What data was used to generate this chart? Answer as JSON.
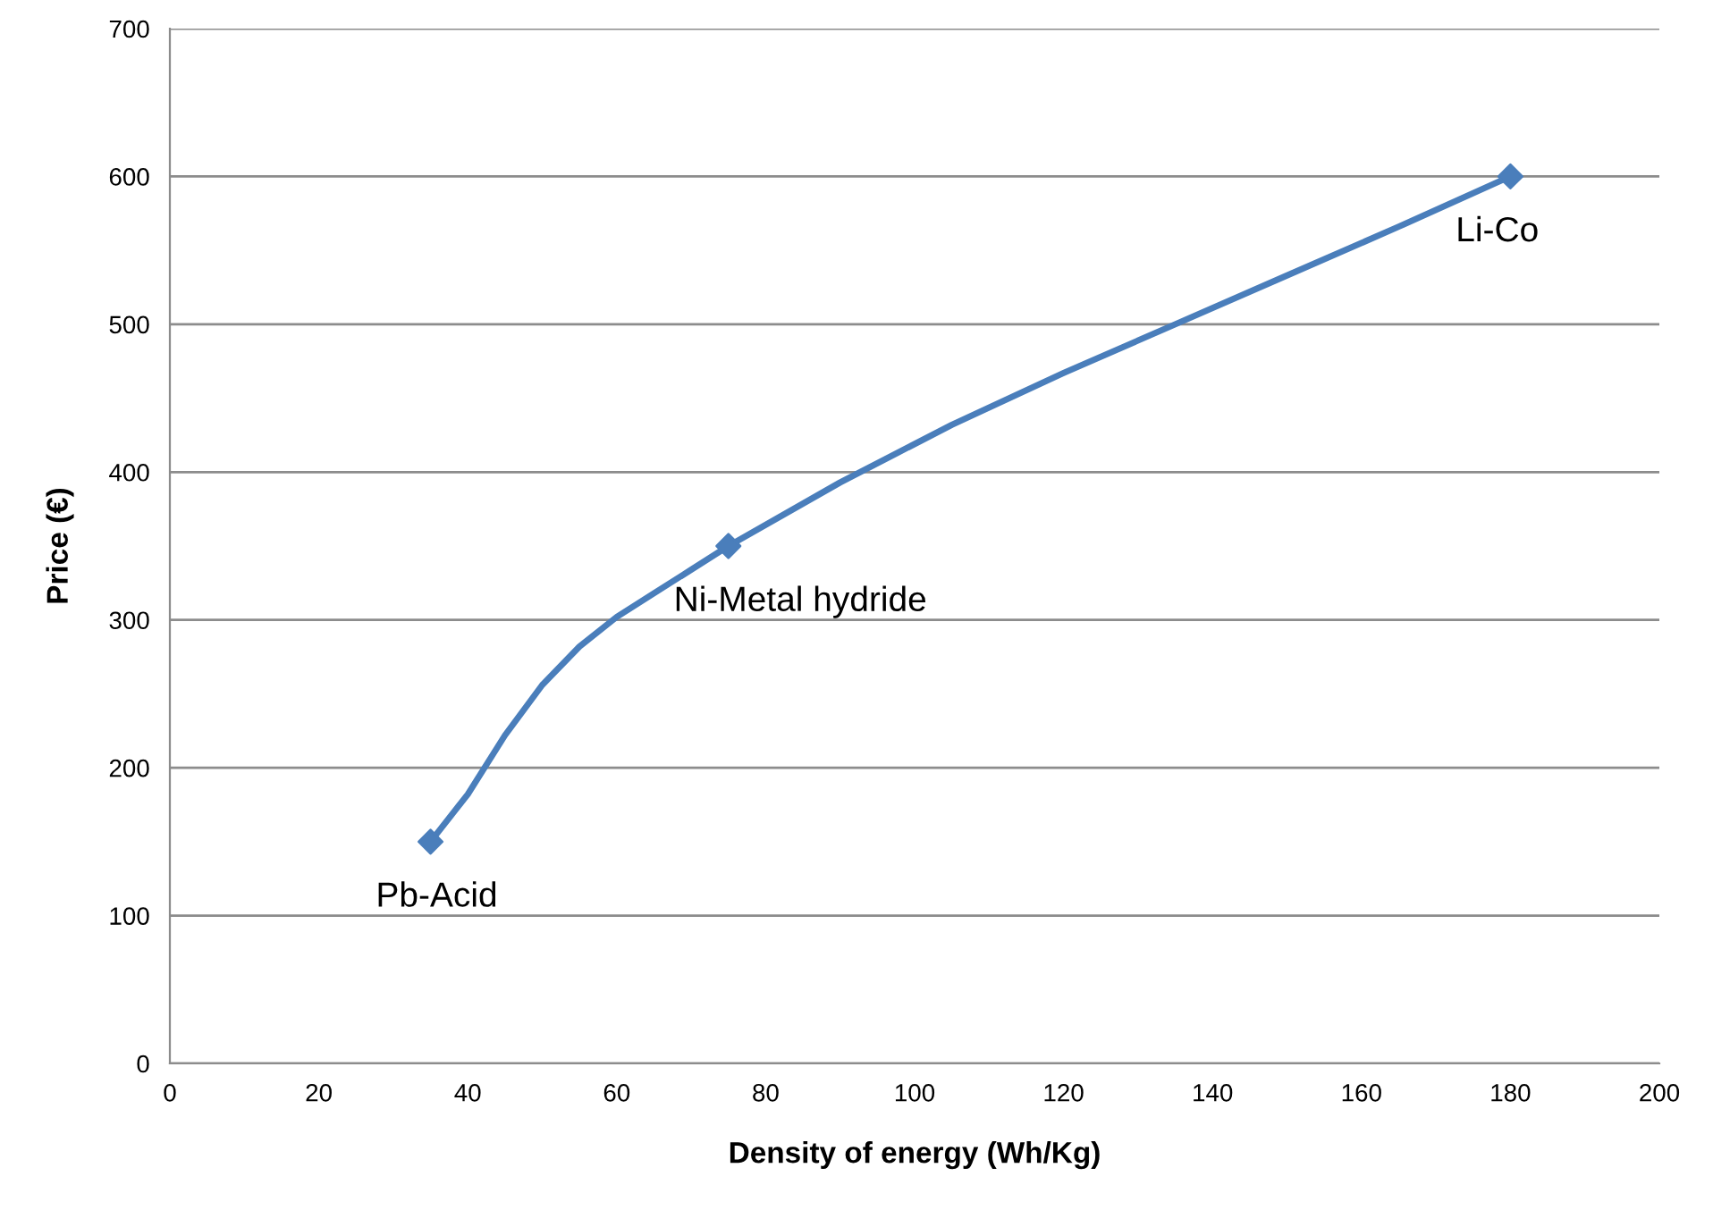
{
  "chart_data": {
    "type": "line",
    "xlabel": "Density of energy (Wh/Kg)",
    "ylabel": "Price (€)",
    "series": [
      {
        "color": "#4a7ebb",
        "x": [
          35,
          40,
          45,
          50,
          55,
          60,
          65,
          70,
          75,
          90,
          105,
          120,
          135,
          150,
          165,
          180
        ],
        "marker": "none",
        "values": [
          150,
          182,
          222,
          256,
          282,
          302,
          318,
          334,
          350,
          393,
          432,
          467,
          500,
          533,
          566,
          600
        ]
      },
      {
        "type": "scatter",
        "marker": "diamond",
        "color": "#4a7ebb",
        "x": [
          35,
          75,
          180
        ],
        "values": [
          150,
          350,
          600
        ]
      }
    ],
    "xlim": [
      0,
      200
    ],
    "xticks": [
      0,
      20,
      40,
      60,
      80,
      100,
      120,
      140,
      160,
      180,
      200
    ],
    "ylim": [
      0,
      700
    ],
    "yticks": [
      0,
      100,
      200,
      300,
      400,
      500,
      600,
      700
    ],
    "grid": "y",
    "line_style": "solid",
    "legend": false,
    "annotations": [
      {
        "text": "Pb-Acid",
        "x": 35,
        "y": 150
      },
      {
        "text": "Ni-Metal hydride",
        "x": 75,
        "y": 350
      },
      {
        "text": "Li-Co",
        "x": 180,
        "y": 600
      }
    ]
  }
}
